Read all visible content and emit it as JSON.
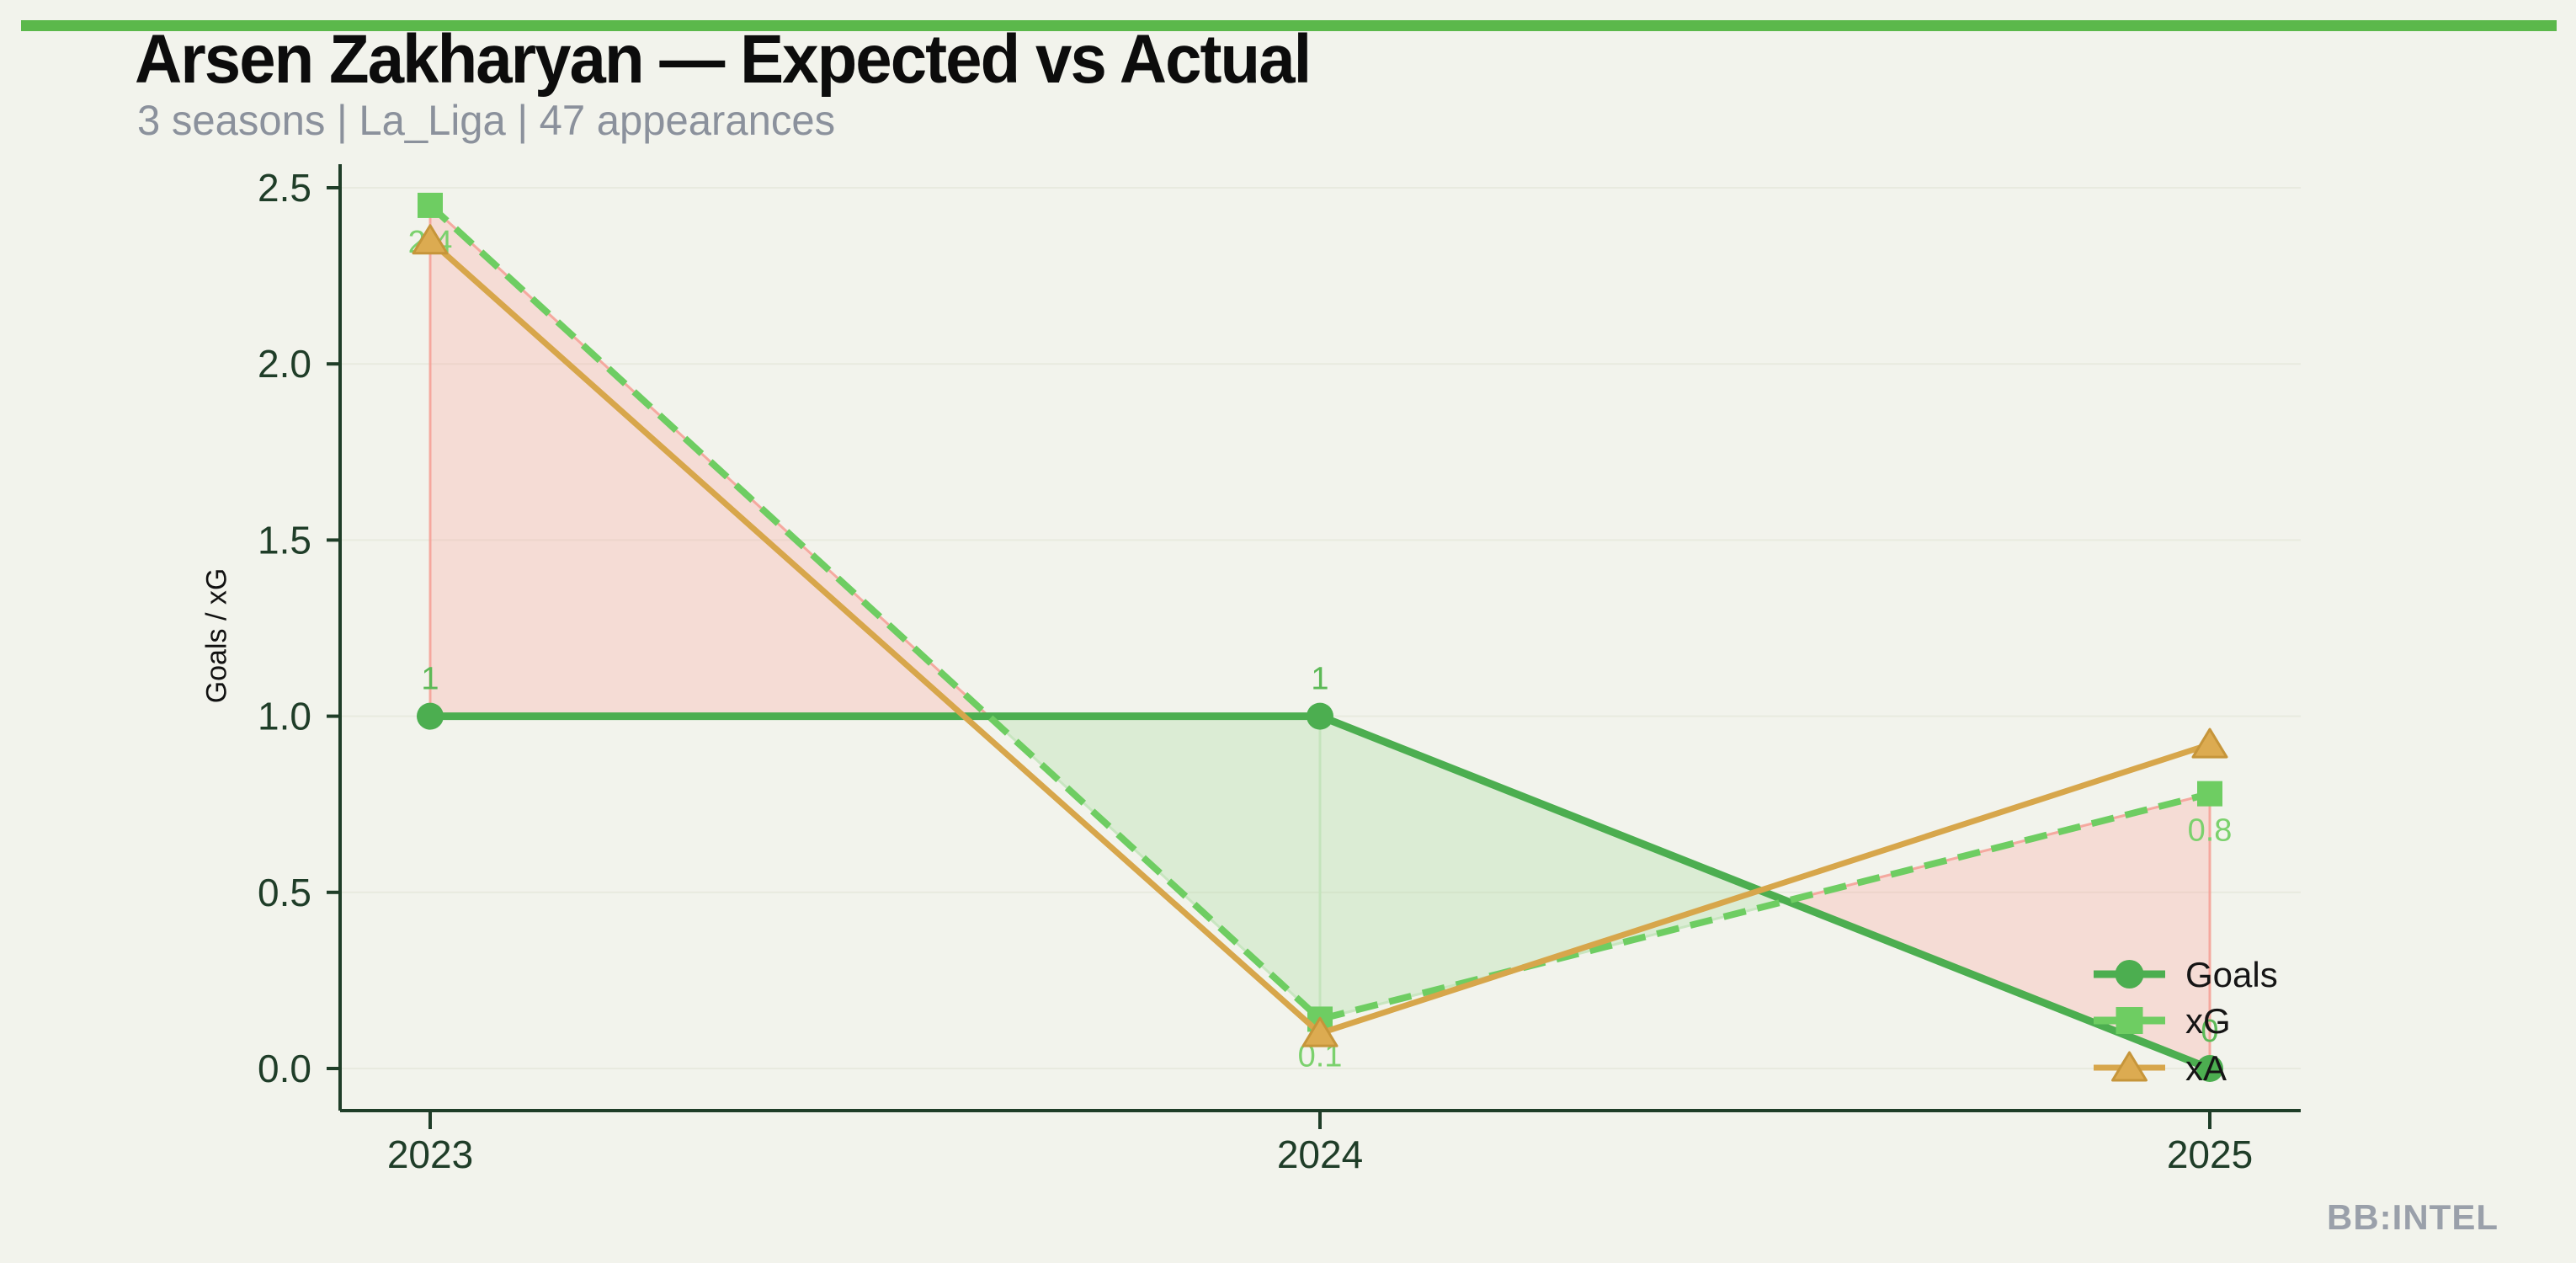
{
  "header": {
    "title": "Arsen Zakharyan — Expected vs Actual",
    "subtitle": "3 seasons | La_Liga | 47 appearances"
  },
  "watermark": "BB:INTEL",
  "chart_data": {
    "type": "line",
    "title": "Arsen Zakharyan — Expected vs Actual",
    "subtitle": "3 seasons | La_Liga | 47 appearances",
    "xlabel": "",
    "ylabel": "Goals / xG",
    "categories": [
      "2023",
      "2024",
      "2025"
    ],
    "ylim": [
      0,
      2.5
    ],
    "yticks": [
      0,
      0.5,
      1.0,
      1.5,
      2.0,
      2.5
    ],
    "ytick_labels": [
      "0.0",
      "0.5",
      "1.0",
      "1.5",
      "2.0",
      "2.5"
    ],
    "grid": true,
    "legend_position": "inside-right",
    "series": [
      {
        "name": "Goals",
        "values": [
          1,
          1,
          0
        ],
        "point_labels": [
          "1",
          "1",
          "0"
        ],
        "color": "#4cae50",
        "label_color": "#5cb956",
        "marker": "circle",
        "line_style": "solid",
        "label_position": "above"
      },
      {
        "name": "xG",
        "values": [
          2.45,
          0.14,
          0.78
        ],
        "point_labels": [
          "2.4",
          "0.1",
          "0.8"
        ],
        "color": "#6ecd62",
        "label_color": "#7bd16d",
        "marker": "square",
        "line_style": "dashed",
        "label_position": "below"
      },
      {
        "name": "xA",
        "values": [
          2.35,
          0.1,
          0.92
        ],
        "point_labels": [],
        "color": "#d7a64b",
        "marker_fill": "#dcab51",
        "marker_edge": "#c6953a",
        "marker": "triangle",
        "line_style": "solid"
      }
    ],
    "fill_between": {
      "pair": [
        "xG",
        "Goals"
      ],
      "underperform_color": "rgba(255,140,130,0.22)",
      "underperform_edge": "rgba(244,158,148,0.85)",
      "overperform_color": "rgba(150,215,140,0.25)",
      "overperform_edge": "rgba(196,228,188,0.9)"
    }
  },
  "style": {
    "background": "#f2f3ec",
    "top_bar_color": "#5bb84b",
    "axis_color": "#1f3d28",
    "grid_color": "#e8eadf",
    "title_color": "#0c0c0c",
    "subtitle_color": "#8b919c",
    "legend_text_color": "#151515",
    "watermark_color": "#9aa0aa"
  }
}
